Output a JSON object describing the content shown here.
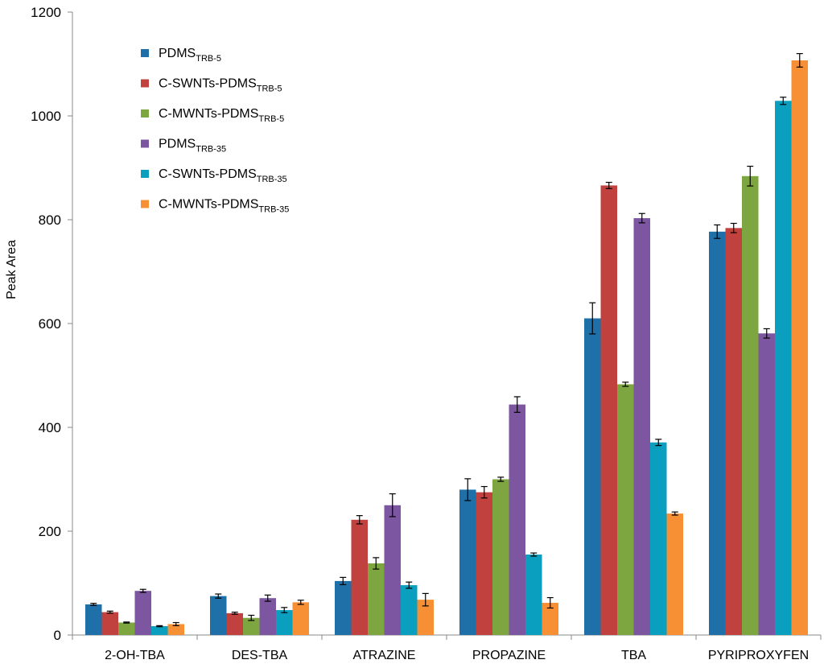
{
  "chart_data": {
    "type": "bar",
    "title": "",
    "xlabel": "",
    "ylabel": "Peak Area",
    "ylim": [
      0,
      1200
    ],
    "yticks": [
      0,
      200,
      400,
      600,
      800,
      1000,
      1200
    ],
    "grid": false,
    "legend_position": "top-left",
    "categories": [
      "2-OH-TBA",
      "DES-TBA",
      "ATRAZINE",
      "PROPAZINE",
      "TBA",
      "PYRIPROXYFEN"
    ],
    "series": [
      {
        "name": "PDMS",
        "subscript": "TRB-5",
        "color": "#1f6fa8",
        "values": [
          59,
          75,
          104,
          280,
          610,
          777
        ],
        "errors": [
          2,
          4,
          7,
          21,
          30,
          13
        ]
      },
      {
        "name": "C-SWNTs-PDMS",
        "subscript": "TRB-5",
        "color": "#c0413d",
        "values": [
          44,
          42,
          222,
          275,
          866,
          784
        ],
        "errors": [
          2,
          2,
          8,
          11,
          6,
          9
        ]
      },
      {
        "name": "C-MWNTs-PDMS",
        "subscript": "TRB-5",
        "color": "#7ea640",
        "values": [
          24,
          33,
          138,
          300,
          483,
          884
        ],
        "errors": [
          1,
          5,
          11,
          4,
          4,
          19
        ]
      },
      {
        "name": "PDMS",
        "subscript": "TRB-35",
        "color": "#7c56a0",
        "values": [
          85,
          71,
          250,
          444,
          803,
          581
        ],
        "errors": [
          3,
          6,
          22,
          15,
          9,
          9
        ]
      },
      {
        "name": "C-SWNTs-PDMS",
        "subscript": "TRB-35",
        "color": "#0a9ebf",
        "values": [
          17,
          48,
          96,
          155,
          371,
          1029
        ],
        "errors": [
          1,
          5,
          6,
          3,
          6,
          7
        ]
      },
      {
        "name": "C-MWNTs-PDMS",
        "subscript": "TRB-35",
        "color": "#f79035",
        "values": [
          21,
          63,
          68,
          62,
          234,
          1107
        ],
        "errors": [
          3,
          4,
          12,
          10,
          3,
          13
        ]
      }
    ]
  }
}
